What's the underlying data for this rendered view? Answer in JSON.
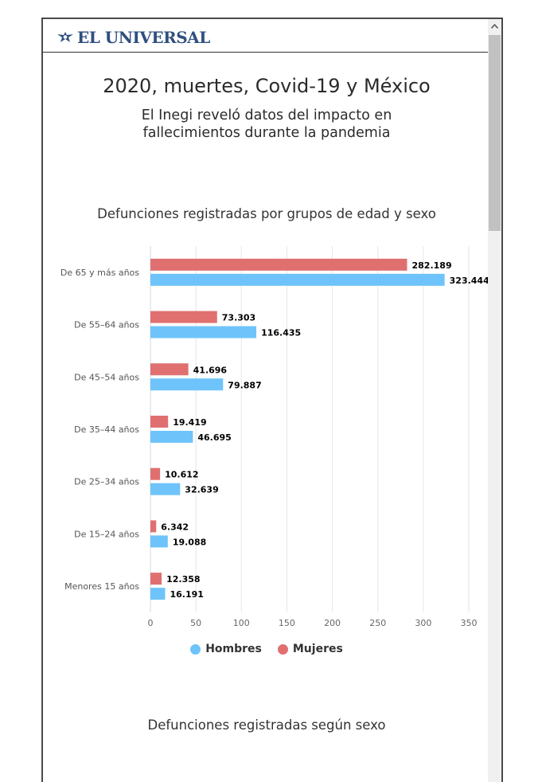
{
  "header": {
    "logo_text": "EL UNIVERSAL"
  },
  "page": {
    "title": "2020, muertes, Covid-19 y México",
    "subtitle": "El Inegi reveló datos del impacto en fallecimientos durante la pandemia"
  },
  "chart_data": [
    {
      "type": "bar",
      "orientation": "horizontal",
      "title": "Defunciones registradas por grupos de edad y sexo",
      "categories": [
        "De 65 y más años",
        "De 55–64 años",
        "De 45–54 años",
        "De 35–44 años",
        "De 25–34 años",
        "De 15–24 años",
        "Menores 15 años"
      ],
      "series": [
        {
          "name": "Mujeres",
          "color": "#e07070",
          "values": [
            282.189,
            73.303,
            41.696,
            19.419,
            10.612,
            6.342,
            12.358
          ],
          "labels": [
            "282.189",
            "73.303",
            "41.696",
            "19.419",
            "10.612",
            "6.342",
            "12.358"
          ]
        },
        {
          "name": "Hombres",
          "color": "#6ec4fa",
          "values": [
            323.444,
            116.435,
            79.887,
            46.695,
            32.639,
            19.088,
            16.191
          ],
          "labels": [
            "323.444",
            "116.435",
            "79.887",
            "46.695",
            "32.639",
            "19.088",
            "16.191"
          ]
        }
      ],
      "xlim": [
        0,
        350
      ],
      "xticks": [
        "0",
        "50",
        "100",
        "150",
        "200",
        "250",
        "300",
        "350"
      ],
      "grid": true,
      "legend": {
        "placement": "bottom",
        "items": [
          "Hombres",
          "Mujeres"
        ]
      }
    },
    {
      "type": "bar",
      "title": "Defunciones registradas según sexo"
    }
  ]
}
